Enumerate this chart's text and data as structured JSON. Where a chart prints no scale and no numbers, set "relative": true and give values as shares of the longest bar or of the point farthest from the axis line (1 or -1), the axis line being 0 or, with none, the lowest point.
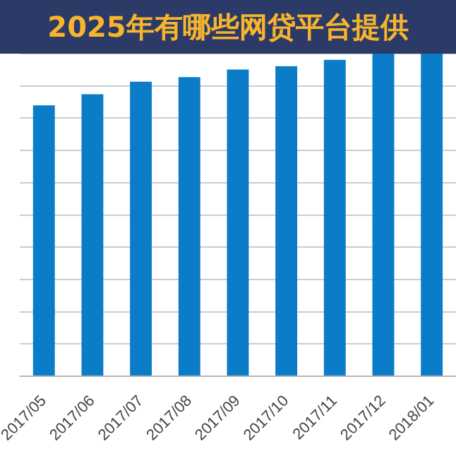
{
  "chart_data": {
    "type": "bar",
    "title": "2025年有哪些网贷平台提供",
    "relative": true,
    "grid": "y",
    "legend": false,
    "categories": [
      "2017/05",
      "2017/06",
      "2017/07",
      "2017/08",
      "2017/09",
      "2017/10",
      "2017/11",
      "2017/12",
      "2018/01"
    ],
    "values": [
      0.84,
      0.874,
      0.913,
      0.927,
      0.951,
      0.961,
      0.981,
      1,
      1
    ],
    "color": "#0a7cc8"
  }
}
